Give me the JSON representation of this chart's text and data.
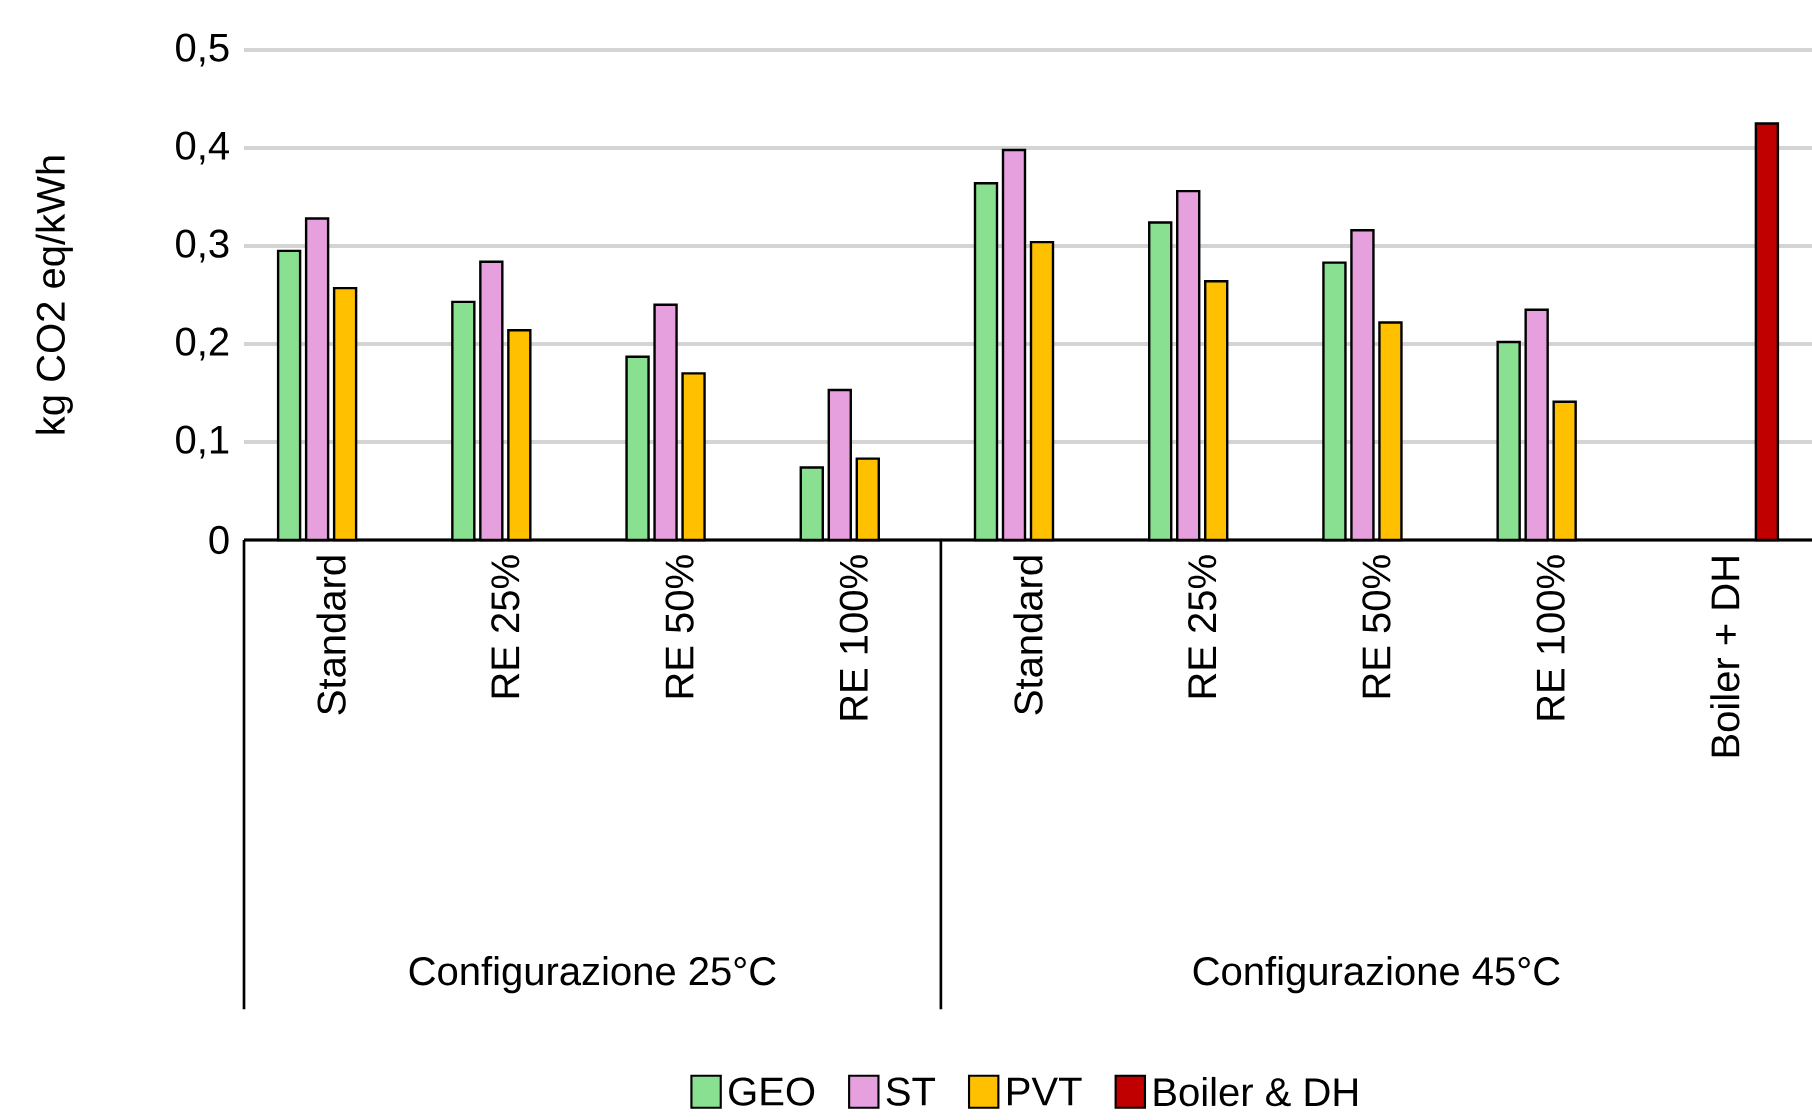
{
  "chart_data": {
    "type": "bar",
    "ylabel": "kg CO2 eq/kWh",
    "categories": [
      "Standard",
      "RE 25%",
      "RE 50%",
      "RE 100%",
      "Standard",
      "RE 25%",
      "RE 50%",
      "RE 100%",
      "Boiler + DH"
    ],
    "series": [
      {
        "name": "GEO",
        "color": "#88e090",
        "values": [
          0.295,
          0.243,
          0.187,
          0.074,
          0.364,
          0.324,
          0.283,
          0.202,
          null
        ]
      },
      {
        "name": "ST",
        "color": "#e6a0de",
        "values": [
          0.328,
          0.284,
          0.24,
          0.153,
          0.398,
          0.356,
          0.316,
          0.235,
          null
        ]
      },
      {
        "name": "PVT",
        "color": "#ffc000",
        "values": [
          0.257,
          0.214,
          0.17,
          0.083,
          0.304,
          0.264,
          0.222,
          0.141,
          null
        ]
      },
      {
        "name": "Boiler & DH",
        "color": "#c00000",
        "values": [
          null,
          null,
          null,
          null,
          null,
          null,
          null,
          null,
          0.425
        ]
      }
    ],
    "ylim": [
      0,
      0.5
    ],
    "yticks": [
      0,
      {
        "value": 0.1,
        "label": "0,1"
      },
      {
        "value": 0.2,
        "label": "0,2"
      },
      {
        "value": 0.3,
        "label": "0,3"
      },
      {
        "value": 0.4,
        "label": "0,4"
      },
      {
        "value": 0.5,
        "label": "0,5"
      }
    ],
    "grid": "y",
    "legend": "bottom",
    "annotations": [
      "Configurazione 25°C",
      "Configurazione 45°C"
    ]
  }
}
